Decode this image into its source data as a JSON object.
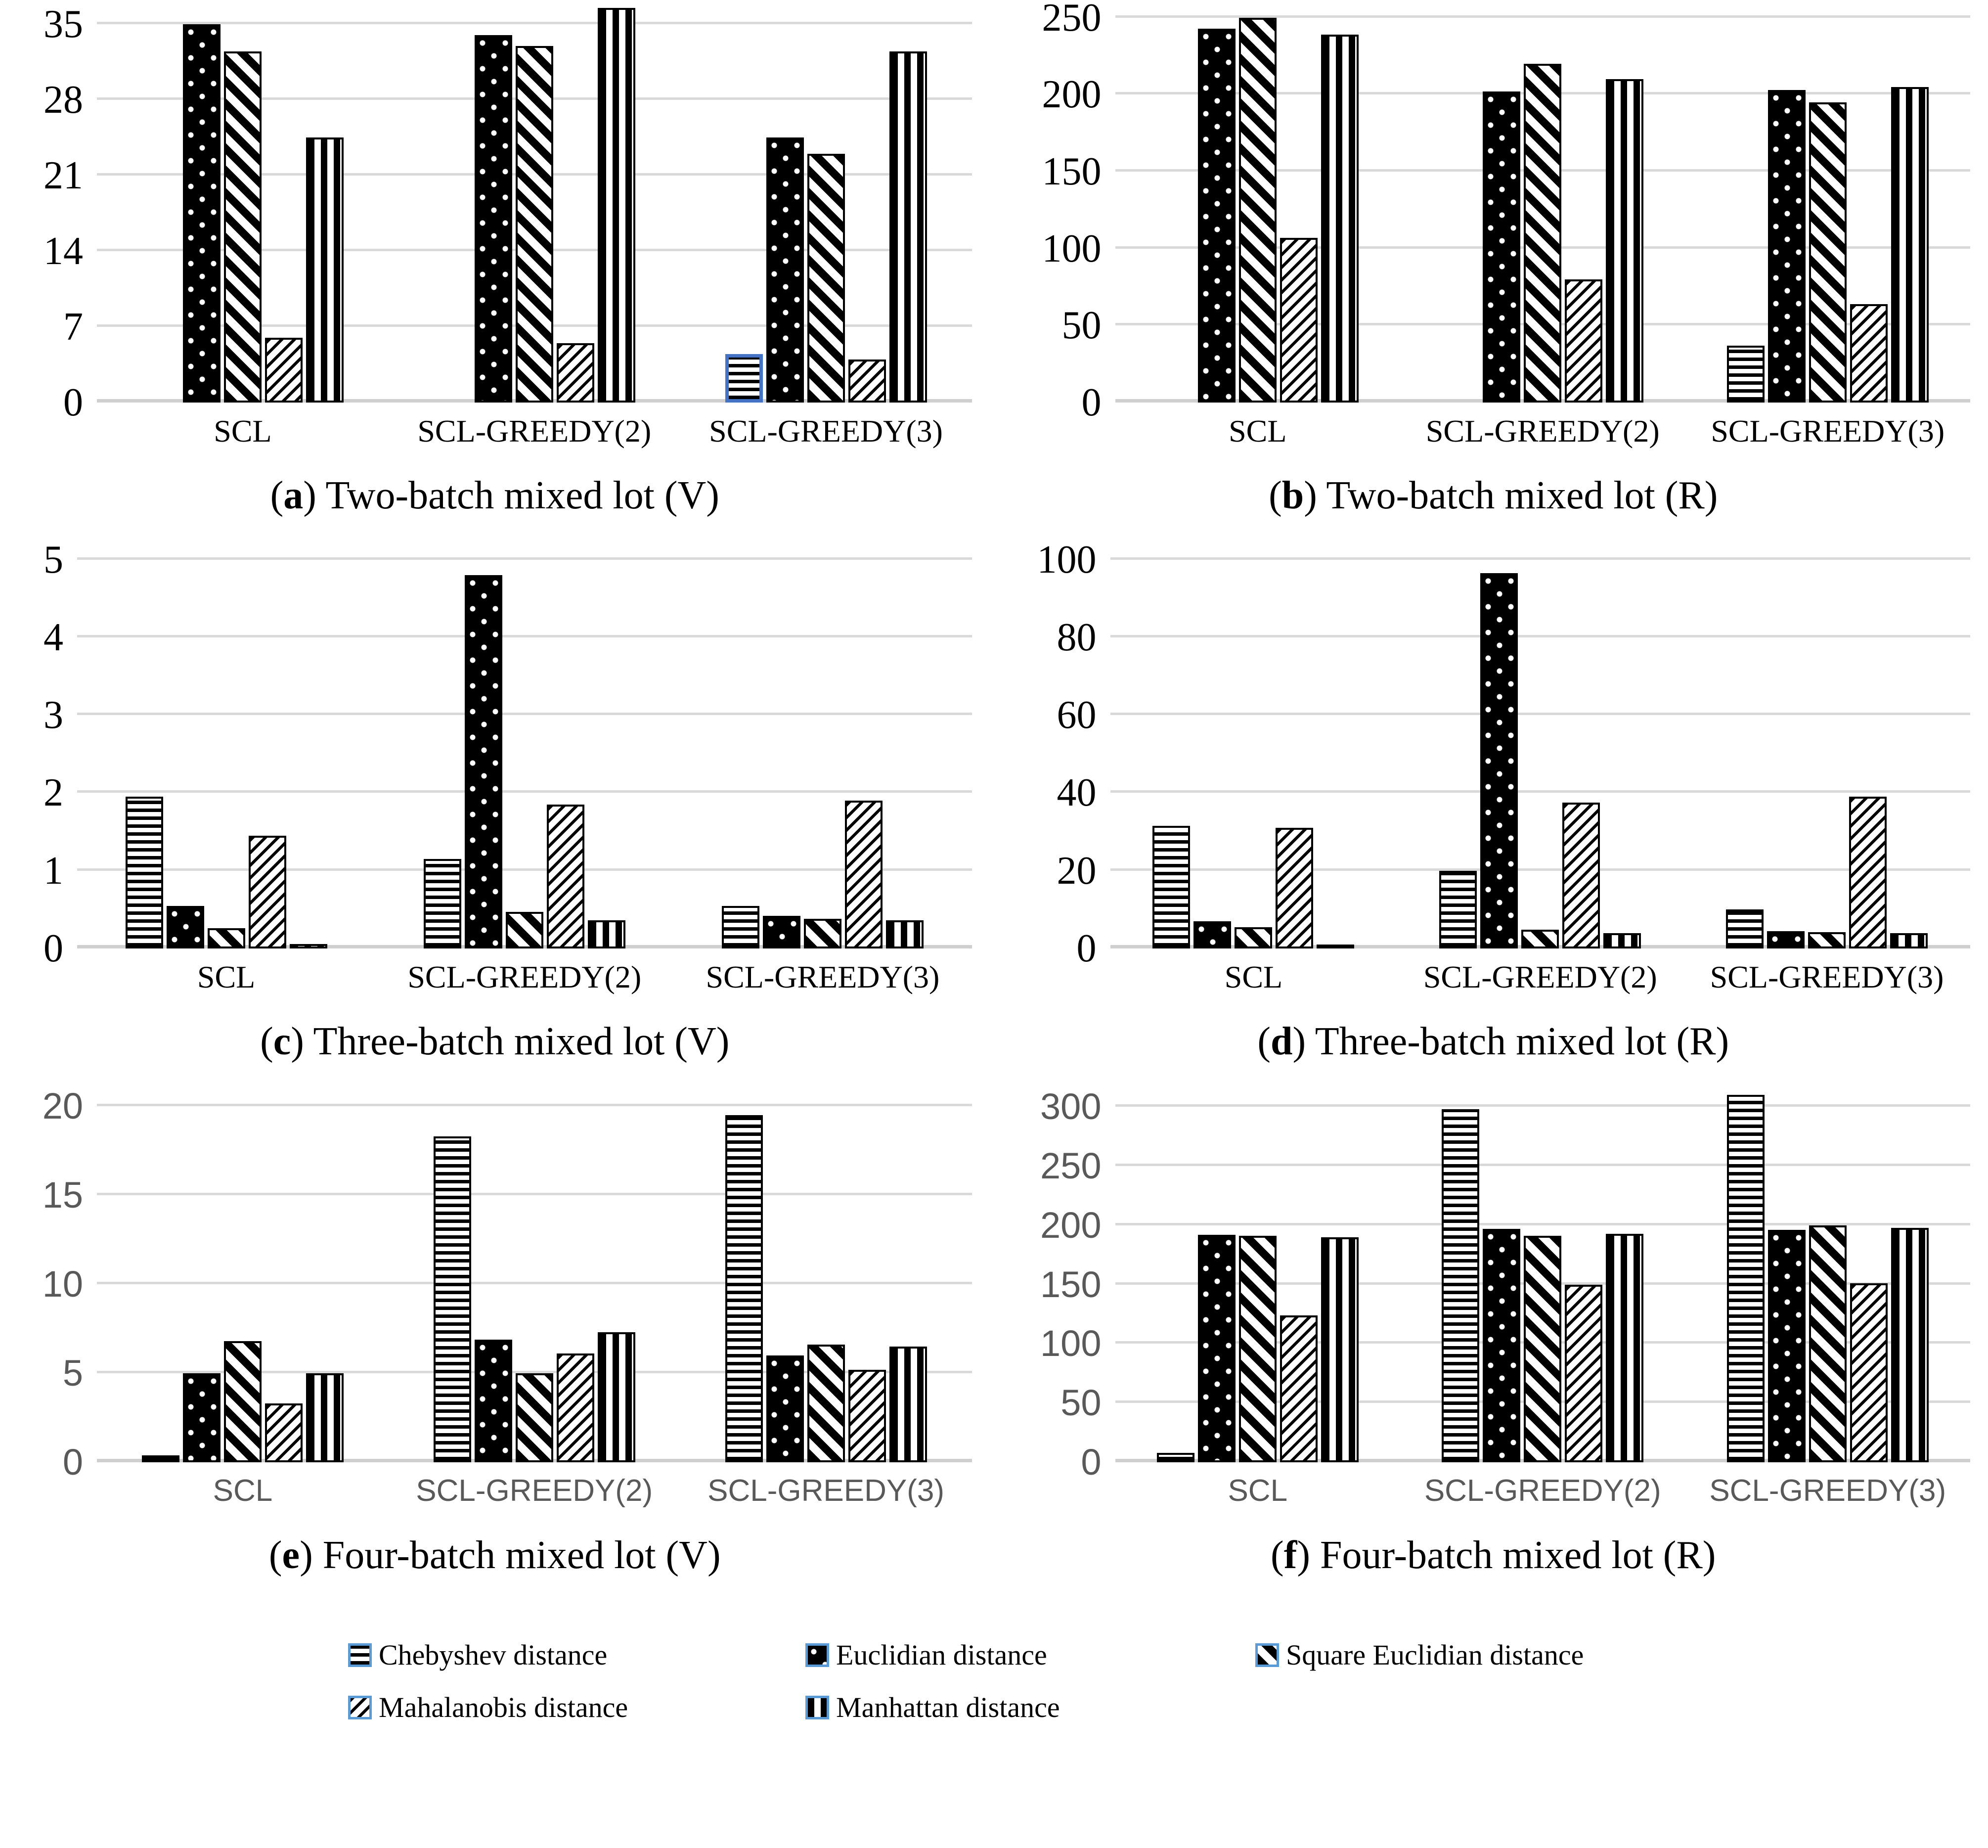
{
  "figure": {
    "punct": {
      "open": "(",
      "close": ") "
    },
    "legend": {
      "items": [
        {
          "label": "Chebyshev distance",
          "pattern": "cheb",
          "swatch_icon": "horizontal-stripes-swatch-icon"
        },
        {
          "label": "Euclidian distance",
          "pattern": "euc",
          "swatch_icon": "black-dotted-swatch-icon"
        },
        {
          "label": "Square Euclidian distance",
          "pattern": "sqeuc",
          "swatch_icon": "down-diagonal-stripes-swatch-icon"
        },
        {
          "label": "Mahalanobis distance",
          "pattern": "mah",
          "swatch_icon": "up-diagonal-hatch-swatch-icon"
        },
        {
          "label": "Manhattan distance",
          "pattern": "man",
          "swatch_icon": "vertical-stripes-swatch-icon"
        }
      ],
      "accent_border_color": "#5b9bd5"
    },
    "highlight_border_color": "#4472c4",
    "gridline_color": "#d9d9d9",
    "secondary_axis_text_color": "#595959"
  },
  "chart_data": [
    {
      "type": "bar",
      "caption_letter": "a",
      "caption_text": "Two-batch mixed lot (V)",
      "title": "(a) Two-batch mixed lot (V)",
      "xlabel": "",
      "ylabel": "",
      "ylim": [
        0,
        35
      ],
      "yticks": [
        0,
        7,
        14,
        21,
        28,
        35
      ],
      "ymax_render": 36.6,
      "grid": true,
      "categories": [
        "SCL",
        "SCL-GREEDY(2)",
        "SCL-GREEDY(3)"
      ],
      "series": [
        {
          "name": "Chebyshev distance",
          "pattern": "cheb",
          "values": [
            0,
            0,
            4.5
          ]
        },
        {
          "name": "Euclidian distance",
          "pattern": "euc",
          "values": [
            35,
            34,
            24.5
          ]
        },
        {
          "name": "Square Euclidian distance",
          "pattern": "sqeuc",
          "values": [
            32.5,
            33,
            23
          ]
        },
        {
          "name": "Mahalanobis distance",
          "pattern": "mah",
          "values": [
            6,
            5.5,
            4
          ]
        },
        {
          "name": "Manhattan distance",
          "pattern": "man",
          "values": [
            24.5,
            36.5,
            32.5
          ]
        }
      ],
      "highlight": {
        "series_index": 0,
        "category_index": 2
      },
      "axis_style": "serif"
    },
    {
      "type": "bar",
      "caption_letter": "b",
      "caption_text": "Two-batch mixed lot (R)",
      "title": "(b) Two-batch mixed lot (R)",
      "xlabel": "",
      "ylabel": "",
      "ylim": [
        0,
        250
      ],
      "yticks": [
        0,
        50,
        100,
        150,
        200,
        250
      ],
      "ymax_render": 257,
      "grid": true,
      "categories": [
        "SCL",
        "SCL-GREEDY(2)",
        "SCL-GREEDY(3)"
      ],
      "series": [
        {
          "name": "Chebyshev distance",
          "pattern": "cheb",
          "values": [
            0,
            0,
            37
          ]
        },
        {
          "name": "Euclidian distance",
          "pattern": "euc",
          "values": [
            243,
            202,
            203
          ]
        },
        {
          "name": "Square Euclidian distance",
          "pattern": "sqeuc",
          "values": [
            250,
            220,
            195
          ]
        },
        {
          "name": "Mahalanobis distance",
          "pattern": "mah",
          "values": [
            107,
            80,
            64
          ]
        },
        {
          "name": "Manhattan distance",
          "pattern": "man",
          "values": [
            239,
            210,
            205
          ]
        }
      ],
      "axis_style": "serif"
    },
    {
      "type": "bar",
      "caption_letter": "c",
      "caption_text": "Three-batch mixed lot (V)",
      "title": "(c) Three-batch mixed lot (V)",
      "xlabel": "",
      "ylabel": "",
      "ylim": [
        0,
        5
      ],
      "yticks": [
        0,
        1,
        2,
        3,
        4,
        5
      ],
      "ymax_render": 5.15,
      "grid": true,
      "categories": [
        "SCL",
        "SCL-GREEDY(2)",
        "SCL-GREEDY(3)"
      ],
      "series": [
        {
          "name": "Chebyshev distance",
          "pattern": "cheb",
          "values": [
            1.95,
            1.15,
            0.55
          ]
        },
        {
          "name": "Euclidian distance",
          "pattern": "euc",
          "values": [
            0.55,
            4.8,
            0.42
          ]
        },
        {
          "name": "Square Euclidian distance",
          "pattern": "sqeuc",
          "values": [
            0.26,
            0.47,
            0.38
          ]
        },
        {
          "name": "Mahalanobis distance",
          "pattern": "mah",
          "values": [
            1.45,
            1.85,
            1.9
          ]
        },
        {
          "name": "Manhattan distance",
          "pattern": "man",
          "values": [
            0.06,
            0.36,
            0.36
          ]
        }
      ],
      "axis_style": "serif"
    },
    {
      "type": "bar",
      "caption_letter": "d",
      "caption_text": "Three-batch mixed lot (R)",
      "title": "(d) Three-batch mixed lot (R)",
      "xlabel": "",
      "ylabel": "",
      "ylim": [
        0,
        100
      ],
      "yticks": [
        0,
        20,
        40,
        60,
        80,
        100
      ],
      "ymax_render": 103,
      "grid": true,
      "categories": [
        "SCL",
        "SCL-GREEDY(2)",
        "SCL-GREEDY(3)"
      ],
      "series": [
        {
          "name": "Chebyshev distance",
          "pattern": "cheb",
          "values": [
            31.5,
            20,
            10
          ]
        },
        {
          "name": "Euclidian distance",
          "pattern": "euc",
          "values": [
            7,
            96.5,
            4.5
          ]
        },
        {
          "name": "Square Euclidian distance",
          "pattern": "sqeuc",
          "values": [
            5.5,
            4.8,
            4.2
          ]
        },
        {
          "name": "Mahalanobis distance",
          "pattern": "mah",
          "values": [
            31,
            37.5,
            39
          ]
        },
        {
          "name": "Manhattan distance",
          "pattern": "man",
          "values": [
            1,
            4,
            4
          ]
        }
      ],
      "axis_style": "serif"
    },
    {
      "type": "bar",
      "caption_letter": "e",
      "caption_text": "Four-batch mixed lot (V)",
      "title": "(e) Four-batch mixed lot (V)",
      "xlabel": "",
      "ylabel": "",
      "ylim": [
        0,
        20
      ],
      "yticks": [
        0,
        5,
        10,
        15,
        20
      ],
      "ymax_render": 20.7,
      "grid": true,
      "categories": [
        "SCL",
        "SCL-GREEDY(2)",
        "SCL-GREEDY(3)"
      ],
      "series": [
        {
          "name": "Chebyshev distance",
          "pattern": "cheb",
          "values": [
            0.4,
            18.3,
            19.5
          ]
        },
        {
          "name": "Euclidian distance",
          "pattern": "euc",
          "values": [
            5,
            6.9,
            6
          ]
        },
        {
          "name": "Square Euclidian distance",
          "pattern": "sqeuc",
          "values": [
            6.8,
            5,
            6.6
          ]
        },
        {
          "name": "Mahalanobis distance",
          "pattern": "mah",
          "values": [
            3.3,
            6.1,
            5.2
          ]
        },
        {
          "name": "Manhattan distance",
          "pattern": "man",
          "values": [
            5,
            7.3,
            6.5
          ]
        }
      ],
      "axis_style": "sans-gray"
    },
    {
      "type": "bar",
      "caption_letter": "f",
      "caption_text": "Four-batch mixed lot (R)",
      "title": "(f) Four-batch mixed lot (R)",
      "xlabel": "",
      "ylabel": "",
      "ylim": [
        0,
        300
      ],
      "yticks": [
        0,
        50,
        100,
        150,
        200,
        250,
        300
      ],
      "ymax_render": 311,
      "grid": true,
      "categories": [
        "SCL",
        "SCL-GREEDY(2)",
        "SCL-GREEDY(3)"
      ],
      "series": [
        {
          "name": "Chebyshev distance",
          "pattern": "cheb",
          "values": [
            8,
            298,
            310
          ]
        },
        {
          "name": "Euclidian distance",
          "pattern": "euc",
          "values": [
            192,
            197,
            196
          ]
        },
        {
          "name": "Square Euclidian distance",
          "pattern": "sqeuc",
          "values": [
            191,
            191,
            200
          ]
        },
        {
          "name": "Mahalanobis distance",
          "pattern": "mah",
          "values": [
            124,
            150,
            151
          ]
        },
        {
          "name": "Manhattan distance",
          "pattern": "man",
          "values": [
            190,
            193,
            198
          ]
        }
      ],
      "axis_style": "sans-gray"
    }
  ]
}
